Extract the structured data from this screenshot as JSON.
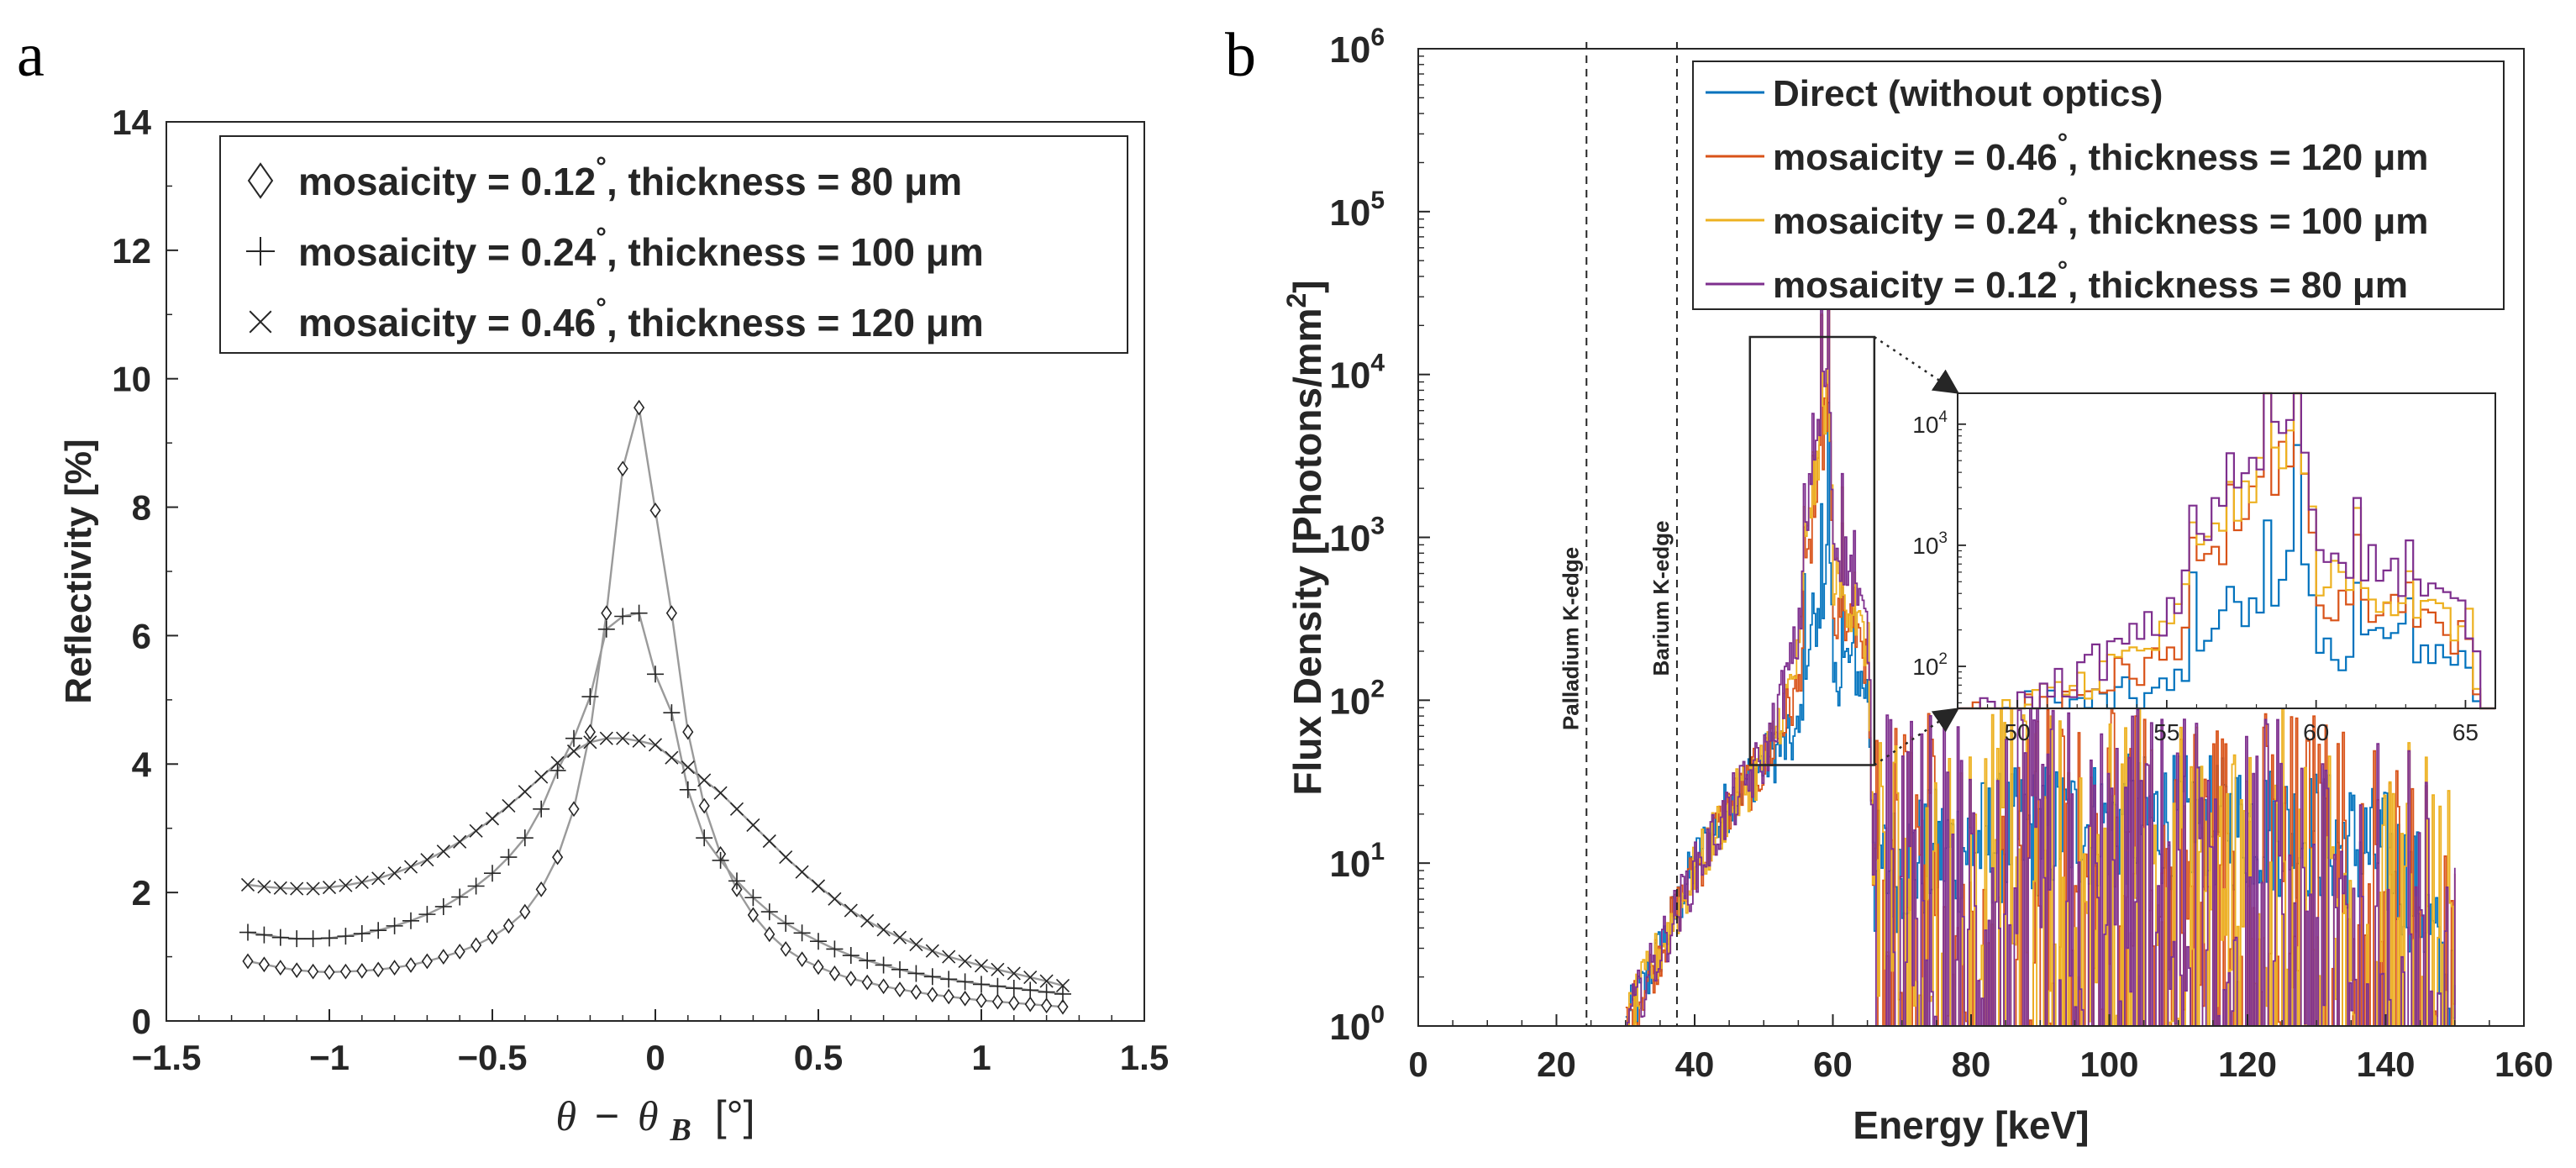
{
  "chart_data": [
    {
      "panel": "a",
      "type": "line",
      "title": "",
      "xlabel": "θ − θB [°]",
      "xlabel_parts": {
        "theta": "θ",
        "minus": "−",
        "theta_b": "θ",
        "sub_b": "B",
        "unit": "[°]"
      },
      "ylabel": "Reflectivity [%]",
      "xlim": [
        -1.5,
        1.5
      ],
      "ylim": [
        0,
        14
      ],
      "xticks": [
        -1.5,
        -1,
        -0.5,
        0,
        0.5,
        1,
        1.5
      ],
      "xtick_labels": [
        "−1.5",
        "−1",
        "−0.5",
        "0",
        "0.5",
        "1",
        "1.5"
      ],
      "yticks": [
        0,
        2,
        4,
        6,
        8,
        10,
        12,
        14
      ],
      "ytick_labels": [
        "0",
        "2",
        "4",
        "6",
        "8",
        "10",
        "12",
        "14"
      ],
      "grid": false,
      "legend_position": "top",
      "x": [
        -1.25,
        -1.2,
        -1.15,
        -1.1,
        -1.05,
        -1.0,
        -0.95,
        -0.9,
        -0.85,
        -0.8,
        -0.75,
        -0.7,
        -0.65,
        -0.6,
        -0.55,
        -0.5,
        -0.45,
        -0.4,
        -0.35,
        -0.3,
        -0.25,
        -0.2,
        -0.15,
        -0.1,
        -0.05,
        0.0,
        0.05,
        0.1,
        0.15,
        0.2,
        0.25,
        0.3,
        0.35,
        0.4,
        0.45,
        0.5,
        0.55,
        0.6,
        0.65,
        0.7,
        0.75,
        0.8,
        0.85,
        0.9,
        0.95,
        1.0,
        1.05,
        1.1,
        1.15,
        1.2,
        1.25
      ],
      "series": [
        {
          "name": "mosaicity = 0.12°, thickness = 80 μm",
          "label_main": "mosaicity = 0.12",
          "label_deg": "°",
          "label_tail": ", thickness = 80 μm",
          "marker": "diamond",
          "values": [
            0.93,
            0.88,
            0.83,
            0.79,
            0.77,
            0.76,
            0.77,
            0.78,
            0.8,
            0.83,
            0.87,
            0.93,
            1.0,
            1.08,
            1.18,
            1.31,
            1.48,
            1.7,
            2.05,
            2.55,
            3.3,
            4.5,
            6.35,
            8.6,
            9.55,
            7.95,
            6.35,
            4.5,
            3.35,
            2.6,
            2.05,
            1.65,
            1.35,
            1.12,
            0.96,
            0.84,
            0.74,
            0.66,
            0.6,
            0.54,
            0.49,
            0.45,
            0.41,
            0.38,
            0.35,
            0.32,
            0.3,
            0.28,
            0.26,
            0.24,
            0.22
          ]
        },
        {
          "name": "mosaicity = 0.24°, thickness = 100 μm",
          "label_main": "mosaicity = 0.24",
          "label_deg": "°",
          "label_tail": ", thickness = 100 μm",
          "marker": "plus",
          "values": [
            1.38,
            1.34,
            1.3,
            1.28,
            1.28,
            1.29,
            1.32,
            1.36,
            1.41,
            1.48,
            1.56,
            1.66,
            1.78,
            1.93,
            2.1,
            2.3,
            2.55,
            2.85,
            3.3,
            3.9,
            4.4,
            5.05,
            6.1,
            6.3,
            6.35,
            5.4,
            4.8,
            3.6,
            2.85,
            2.5,
            2.18,
            1.92,
            1.7,
            1.52,
            1.37,
            1.24,
            1.12,
            1.02,
            0.94,
            0.87,
            0.8,
            0.74,
            0.69,
            0.65,
            0.61,
            0.57,
            0.54,
            0.51,
            0.48,
            0.45,
            0.42
          ]
        },
        {
          "name": "mosaicity = 0.46°, thickness = 120 μm",
          "label_main": "mosaicity = 0.46",
          "label_deg": "°",
          "label_tail": ", thickness = 120 μm",
          "marker": "cross",
          "values": [
            2.12,
            2.09,
            2.07,
            2.06,
            2.06,
            2.08,
            2.11,
            2.16,
            2.22,
            2.3,
            2.4,
            2.51,
            2.64,
            2.79,
            2.96,
            3.15,
            3.35,
            3.57,
            3.8,
            4.02,
            4.2,
            4.34,
            4.4,
            4.4,
            4.36,
            4.3,
            4.1,
            3.95,
            3.75,
            3.55,
            3.3,
            3.05,
            2.8,
            2.55,
            2.32,
            2.1,
            1.9,
            1.72,
            1.56,
            1.42,
            1.3,
            1.19,
            1.09,
            1.0,
            0.93,
            0.86,
            0.8,
            0.74,
            0.68,
            0.62,
            0.55
          ]
        }
      ]
    },
    {
      "panel": "b",
      "type": "line",
      "title": "",
      "xlabel": "Energy [keV]",
      "ylabel": "Flux Density [Photons/mm²]",
      "ylabel_main": "Flux Density [Photons/mm",
      "ylabel_sup": "2",
      "ylabel_tail": "]",
      "yscale": "log",
      "xlim": [
        0,
        160
      ],
      "ylim": [
        1,
        1000000
      ],
      "xticks": [
        0,
        20,
        40,
        60,
        80,
        100,
        120,
        140,
        160
      ],
      "xtick_labels": [
        "0",
        "20",
        "40",
        "60",
        "80",
        "100",
        "120",
        "140",
        "160"
      ],
      "ytick_base": [
        "10",
        "10",
        "10",
        "10",
        "10",
        "10",
        "10"
      ],
      "ytick_exp": [
        "0",
        "1",
        "2",
        "3",
        "4",
        "5",
        "6"
      ],
      "grid": false,
      "legend_position": "top-right",
      "annotations": [
        {
          "text": "Palladium K-edge",
          "x": 24.35
        },
        {
          "text": "Barium K-edge",
          "x": 37.44
        }
      ],
      "x_range": [
        30,
        150
      ],
      "series": [
        {
          "name": "Direct (without optics)",
          "label_main": "Direct (without optics)",
          "label_deg": "",
          "label_tail": "",
          "color": "#0072BD",
          "shape": {
            "x": [
              30,
              35,
              40,
              45,
              50,
              55,
              56,
              58,
              59.3,
              60,
              62,
              65,
              66,
              67,
              70,
              80,
              90,
              100,
              110,
              120,
              130,
              140,
              145,
              150
            ],
            "y": [
              1,
              3,
              10,
              24,
              42,
              60,
              190,
              300,
              1000,
              120,
              180,
              110,
              8,
              9,
              10,
              13,
              16,
              18,
              18,
              17,
              15,
              11,
              6,
              1
            ]
          }
        },
        {
          "name": "mosaicity = 0.46°, thickness = 120 μm",
          "label_main": "mosaicity = 0.46",
          "label_deg": "°",
          "label_tail": ", thickness = 120 μm",
          "color": "#D95319",
          "shape": {
            "x": [
              30,
              35,
              40,
              45,
              50,
              55,
              56,
              58,
              59.3,
              60,
              62,
              65,
              66,
              67,
              70,
              80,
              90,
              100,
              110,
              120,
              130,
              140,
              145,
              150
            ],
            "y": [
              1,
              3,
              9,
              22,
              40,
              120,
              500,
              2500,
              8000,
              280,
              300,
              150,
              4,
              4,
              4,
              4,
              4,
              4,
              4,
              4,
              4,
              3,
              2,
              1
            ]
          }
        },
        {
          "name": "mosaicity = 0.24°, thickness = 100 μm",
          "label_main": "mosaicity = 0.24",
          "label_deg": "°",
          "label_tail": ", thickness = 100 μm",
          "color": "#EDB120",
          "shape": {
            "x": [
              30,
              35,
              40,
              45,
              50,
              55,
              56,
              58,
              59.3,
              60,
              62,
              65,
              66,
              67,
              70,
              80,
              90,
              100,
              110,
              120,
              130,
              140,
              145,
              150
            ],
            "y": [
              1,
              3,
              9,
              22,
              42,
              180,
              800,
              3500,
              10000,
              550,
              420,
              200,
              4,
              4,
              4,
              4,
              4,
              4,
              4,
              4,
              4,
              3,
              2,
              1
            ]
          }
        },
        {
          "name": "mosaicity = 0.12°, thickness = 80 μm",
          "label_main": "mosaicity = 0.12",
          "label_deg": "°",
          "label_tail": ", thickness = 80 μm",
          "color": "#7E2F8E",
          "shape": {
            "x": [
              30,
              35,
              40,
              45,
              50,
              55,
              56,
              58,
              59.3,
              60,
              62,
              65,
              66,
              67,
              70,
              80,
              90,
              100,
              110,
              120,
              130,
              140,
              145,
              150
            ],
            "y": [
              1,
              3,
              9,
              22,
              45,
              250,
              1200,
              5000,
              15000,
              900,
              700,
              250,
              4,
              4,
              4,
              4,
              4,
              4,
              4,
              4,
              4,
              3,
              2,
              1
            ]
          }
        }
      ],
      "inset": {
        "xlim": [
          48,
          66
        ],
        "ylim": [
          45,
          18000
        ],
        "zoom_box_x": [
          48,
          66
        ],
        "zoom_box_y": [
          40,
          17000
        ],
        "xticks": [
          50,
          55,
          60,
          65
        ],
        "xtick_labels": [
          "50",
          "55",
          "60",
          "65"
        ],
        "ytick_base": [
          "10",
          "10",
          "10"
        ],
        "ytick_exp": [
          "2",
          "3",
          "4"
        ]
      }
    }
  ]
}
